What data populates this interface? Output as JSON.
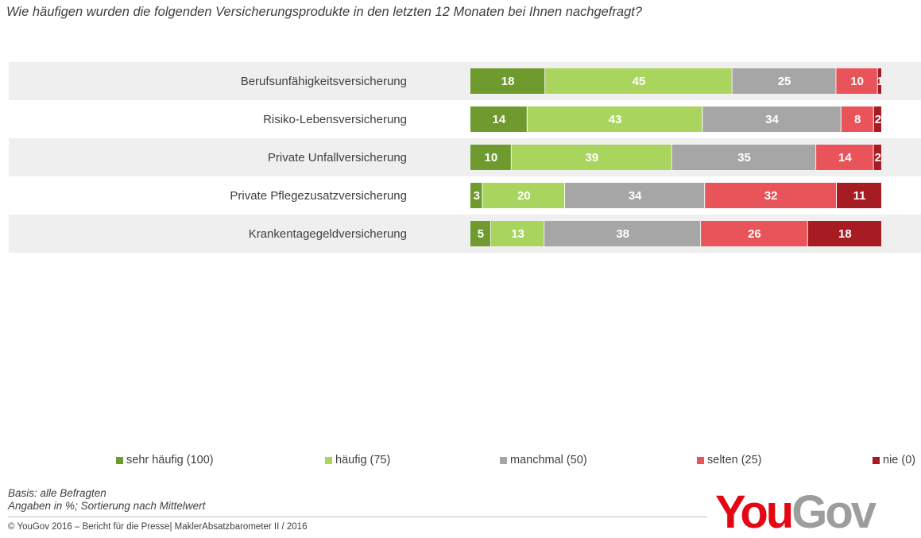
{
  "question": "Wie häufigen wurden die folgenden Versicherungsprodukte in den letzten 12 Monaten bei Ihnen nachgefragt?",
  "chart_data": {
    "type": "bar",
    "orientation": "horizontal",
    "stacked": true,
    "title": "Wie häufigen wurden die folgenden Versicherungsprodukte in den letzten 12 Monaten bei Ihnen nachgefragt?",
    "categories": [
      "Berufsunfähigkeitsversicherung",
      "Risiko-Lebensversicherung",
      "Private Unfallversicherung",
      "Private Pflegezusatzversicherung",
      "Krankentagegeldversicherung"
    ],
    "series": [
      {
        "name": "sehr häufig (100)",
        "color": "#6e9a2e",
        "values": [
          18,
          14,
          10,
          3,
          5
        ]
      },
      {
        "name": "häufig (75)",
        "color": "#a9d55f",
        "values": [
          45,
          43,
          39,
          20,
          13
        ]
      },
      {
        "name": "manchmal (50)",
        "color": "#a6a6a6",
        "values": [
          25,
          34,
          35,
          34,
          38
        ]
      },
      {
        "name": "selten (25)",
        "color": "#e9545a",
        "values": [
          10,
          8,
          14,
          32,
          26
        ]
      },
      {
        "name": "nie (0)",
        "color": "#a61c22",
        "values": [
          1,
          2,
          2,
          11,
          18
        ]
      }
    ],
    "legend_position": "bottom",
    "grid": false
  },
  "notes": {
    "basis": "Basis: alle Befragten",
    "angaben": "Angaben in %; Sortierung nach Mittelwert"
  },
  "copyright": "©  YouGov 2016 – Bericht für die Presse| MaklerAbsatzbarometer II / 2016",
  "logo": {
    "part1": "You",
    "part2": "Gov"
  }
}
